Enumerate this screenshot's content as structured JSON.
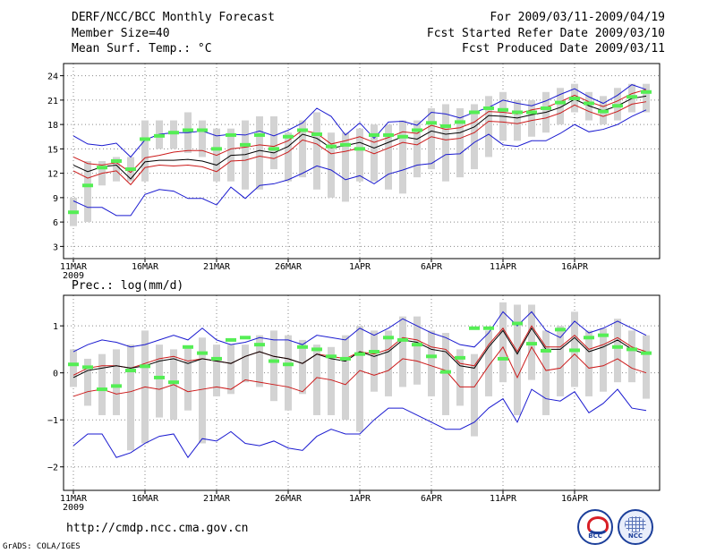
{
  "header": {
    "title": "DERF/NCC/BCC Monthly Forecast",
    "member_size": "Member Size=40",
    "variable": "Mean Surf. Temp.: °C",
    "period": "For 2009/03/11-2009/04/19",
    "started": "Fcst Started Refer Date 2009/03/10",
    "produced": "Fcst Produced Date 2009/03/11"
  },
  "footer": {
    "url": "http://cmdp.ncc.cma.gov.cn",
    "credit": "GrADS: COLA/IGES",
    "logo_bcc": "BCC",
    "logo_ncc": "NCC"
  },
  "colors": {
    "frame": "#000000",
    "grid": "#888888",
    "box": "#d3d3d3",
    "obs": "#55ee55",
    "ensmax": "#1a1ad0",
    "quant": "#cc1a1a",
    "mean": "#000000"
  },
  "chart_data": [
    {
      "type": "line",
      "title": "Mean Surf. Temp.: °C",
      "x_tick_labels": [
        "11MAR",
        "16MAR",
        "21MAR",
        "26MAR",
        "1APR",
        "6APR",
        "11APR",
        "16APR"
      ],
      "x_tick_days": [
        1,
        6,
        11,
        16,
        21,
        26,
        31,
        36
      ],
      "year_label": "2009",
      "ylim": [
        1.5,
        25.5
      ],
      "y_ticks": [
        3,
        6,
        9,
        12,
        15,
        18,
        21,
        24
      ],
      "days": 40,
      "series": [
        {
          "name": "ensemble max",
          "color": "blue",
          "values": [
            16.6,
            15.6,
            15.4,
            15.7,
            14.0,
            16.1,
            16.8,
            17.0,
            17.0,
            17.2,
            16.6,
            16.8,
            16.7,
            17.2,
            16.6,
            17.3,
            18.2,
            20.0,
            19.0,
            16.7,
            18.2,
            16.3,
            18.3,
            18.4,
            17.9,
            19.5,
            19.3,
            18.8,
            19.5,
            20.1,
            21.0,
            20.6,
            20.3,
            20.9,
            21.7,
            22.4,
            21.4,
            20.6,
            21.6,
            22.9,
            22.3
          ]
        },
        {
          "name": "upper quantile",
          "color": "red",
          "values": [
            14.0,
            13.2,
            13.0,
            13.3,
            12.1,
            13.9,
            14.2,
            14.6,
            14.8,
            14.8,
            14.2,
            15.0,
            15.2,
            15.5,
            15.3,
            16.0,
            17.3,
            16.9,
            15.6,
            16.0,
            16.5,
            15.8,
            16.4,
            17.1,
            16.9,
            17.9,
            17.4,
            17.6,
            18.3,
            19.6,
            19.5,
            19.3,
            19.8,
            20.1,
            20.8,
            21.6,
            20.8,
            20.2,
            20.9,
            21.8,
            22.3
          ]
        },
        {
          "name": "ensemble mean",
          "color": "black",
          "values": [
            13.0,
            12.2,
            12.8,
            13.0,
            11.3,
            13.4,
            13.6,
            13.6,
            13.7,
            13.5,
            13.0,
            14.2,
            14.3,
            14.8,
            14.5,
            15.3,
            16.8,
            16.3,
            15.1,
            15.4,
            15.8,
            15.1,
            15.8,
            16.5,
            16.2,
            17.2,
            16.8,
            17.0,
            17.7,
            19.1,
            19.0,
            18.8,
            19.2,
            19.5,
            20.1,
            21.1,
            20.3,
            19.7,
            20.3,
            21.2,
            21.5
          ]
        },
        {
          "name": "lower quantile",
          "color": "red",
          "values": [
            12.3,
            11.4,
            12.0,
            12.3,
            10.6,
            12.7,
            13.0,
            12.9,
            13.0,
            12.8,
            12.2,
            13.5,
            13.6,
            14.1,
            13.8,
            14.6,
            16.1,
            15.6,
            14.4,
            14.7,
            15.1,
            14.4,
            15.1,
            15.8,
            15.5,
            16.5,
            16.1,
            16.3,
            17.0,
            18.4,
            18.3,
            18.1,
            18.5,
            18.8,
            19.4,
            20.4,
            19.6,
            19.0,
            19.6,
            20.5,
            20.8
          ]
        },
        {
          "name": "ensemble min",
          "color": "blue",
          "values": [
            8.6,
            7.8,
            7.8,
            6.8,
            6.8,
            9.4,
            10.0,
            9.8,
            8.9,
            8.9,
            8.1,
            10.3,
            8.9,
            10.5,
            10.7,
            11.2,
            12.0,
            12.9,
            12.4,
            11.2,
            11.7,
            10.7,
            11.9,
            12.4,
            13.0,
            13.2,
            14.3,
            14.4,
            15.8,
            16.8,
            15.5,
            15.3,
            16.0,
            16.0,
            16.9,
            18.0,
            17.1,
            17.4,
            18.0,
            19.0,
            19.8
          ]
        }
      ],
      "boxes": {
        "low": [
          5.5,
          6.0,
          10.5,
          11.0,
          11.0,
          11.0,
          15.0,
          15.0,
          14.5,
          14.0,
          11.0,
          11.0,
          10.0,
          10.0,
          12.5,
          11.0,
          11.5,
          10.0,
          9.0,
          8.5,
          11.0,
          11.0,
          10.0,
          9.5,
          11.5,
          12.5,
          11.0,
          11.5,
          12.5,
          14.0,
          16.0,
          16.0,
          16.5,
          17.0,
          18.0,
          19.5,
          18.5,
          18.0,
          18.5,
          19.5,
          19.5
        ],
        "high": [
          9.0,
          13.5,
          13.5,
          14.0,
          14.0,
          18.5,
          18.5,
          18.5,
          19.5,
          18.5,
          17.5,
          17.5,
          18.5,
          19.0,
          19.0,
          17.0,
          18.5,
          19.5,
          17.0,
          17.0,
          17.5,
          18.0,
          18.0,
          18.5,
          18.5,
          20.0,
          20.5,
          20.0,
          20.5,
          21.5,
          22.0,
          21.0,
          21.0,
          22.0,
          22.5,
          23.0,
          22.0,
          21.5,
          22.5,
          23.0,
          23.0
        ]
      },
      "observed": [
        7.2,
        10.5,
        12.7,
        13.5,
        12.5,
        16.2,
        16.6,
        17.0,
        17.3,
        17.3,
        15.0,
        16.7,
        15.5,
        16.7,
        15.0,
        16.5,
        17.3,
        16.8,
        15.3,
        15.5,
        15.0,
        16.7,
        16.7,
        16.5,
        17.3,
        18.2,
        17.8,
        18.3,
        19.5,
        20.0,
        19.8,
        19.5,
        19.5,
        20.0,
        20.7,
        21.2,
        20.6,
        19.6,
        20.3,
        21.4,
        22.0
      ]
    },
    {
      "type": "line",
      "title": "Prec.: log(mm/d)",
      "x_tick_labels": [
        "11MAR",
        "16MAR",
        "21MAR",
        "26MAR",
        "1APR",
        "6APR",
        "11APR",
        "16APR"
      ],
      "x_tick_days": [
        1,
        6,
        11,
        16,
        21,
        26,
        31,
        36
      ],
      "year_label": "2009",
      "ylim": [
        -2.5,
        1.65
      ],
      "y_ticks": [
        -2,
        -1,
        0,
        1
      ],
      "y_tick_labels": [
        "−2",
        "−1",
        "0",
        "1"
      ],
      "days": 40,
      "series": [
        {
          "name": "ensemble max",
          "color": "blue",
          "values": [
            0.45,
            0.6,
            0.7,
            0.65,
            0.55,
            0.6,
            0.7,
            0.8,
            0.7,
            0.95,
            0.7,
            0.6,
            0.65,
            0.75,
            0.7,
            0.7,
            0.6,
            0.8,
            0.75,
            0.7,
            0.95,
            0.8,
            0.95,
            1.15,
            1.0,
            0.85,
            0.75,
            0.6,
            0.55,
            0.85,
            1.3,
            1.0,
            1.3,
            0.9,
            0.75,
            1.1,
            0.85,
            0.95,
            1.1,
            0.95,
            0.8
          ]
        },
        {
          "name": "upper quantile",
          "color": "red",
          "values": [
            -0.05,
            0.1,
            0.15,
            0.15,
            0.1,
            0.2,
            0.3,
            0.35,
            0.25,
            0.3,
            0.25,
            0.2,
            0.35,
            0.45,
            0.35,
            0.3,
            0.2,
            0.4,
            0.35,
            0.3,
            0.45,
            0.4,
            0.5,
            0.75,
            0.7,
            0.55,
            0.5,
            0.2,
            0.15,
            0.6,
            0.95,
            0.45,
            1.0,
            0.55,
            0.55,
            0.8,
            0.5,
            0.6,
            0.75,
            0.55,
            0.45
          ]
        },
        {
          "name": "ensemble mean",
          "color": "black",
          "values": [
            -0.1,
            0.05,
            0.1,
            0.15,
            0.1,
            0.15,
            0.25,
            0.3,
            0.2,
            0.3,
            0.25,
            0.2,
            0.35,
            0.45,
            0.35,
            0.3,
            0.2,
            0.4,
            0.3,
            0.25,
            0.45,
            0.35,
            0.45,
            0.7,
            0.65,
            0.5,
            0.45,
            0.15,
            0.1,
            0.55,
            0.9,
            0.4,
            0.95,
            0.5,
            0.5,
            0.75,
            0.45,
            0.55,
            0.7,
            0.5,
            0.4
          ]
        },
        {
          "name": "lower quantile",
          "color": "red",
          "values": [
            -0.5,
            -0.4,
            -0.35,
            -0.45,
            -0.4,
            -0.3,
            -0.35,
            -0.25,
            -0.4,
            -0.35,
            -0.3,
            -0.35,
            -0.15,
            -0.2,
            -0.25,
            -0.3,
            -0.4,
            -0.1,
            -0.15,
            -0.25,
            0.05,
            -0.05,
            0.05,
            0.3,
            0.25,
            0.15,
            0.05,
            -0.3,
            -0.3,
            0.15,
            0.55,
            -0.1,
            0.55,
            0.05,
            0.1,
            0.4,
            0.1,
            0.15,
            0.3,
            0.1,
            0.0
          ]
        },
        {
          "name": "ensemble min",
          "color": "blue",
          "values": [
            -1.55,
            -1.3,
            -1.3,
            -1.8,
            -1.7,
            -1.5,
            -1.35,
            -1.3,
            -1.8,
            -1.4,
            -1.45,
            -1.25,
            -1.5,
            -1.55,
            -1.45,
            -1.6,
            -1.65,
            -1.35,
            -1.2,
            -1.3,
            -1.3,
            -1.0,
            -0.75,
            -0.75,
            -0.9,
            -1.05,
            -1.2,
            -1.2,
            -1.05,
            -0.75,
            -0.55,
            -1.05,
            -0.35,
            -0.55,
            -0.6,
            -0.4,
            -0.85,
            -0.65,
            -0.35,
            -0.75,
            -0.8
          ]
        }
      ],
      "boxes": {
        "low": [
          -0.3,
          -0.7,
          -0.9,
          -0.9,
          -1.65,
          -1.5,
          -0.95,
          -1.0,
          -0.8,
          -1.5,
          -0.5,
          -0.45,
          -0.2,
          -0.3,
          -0.6,
          -0.8,
          -0.45,
          -0.9,
          -0.9,
          -1.0,
          -1.25,
          -0.4,
          -0.5,
          -0.3,
          -0.25,
          -0.5,
          -0.9,
          -0.7,
          -1.35,
          -0.5,
          -0.2,
          -0.9,
          -0.15,
          -0.9,
          -0.5,
          -0.3,
          -0.5,
          -0.4,
          -0.2,
          -0.2,
          -0.55
        ],
        "high": [
          0.5,
          0.3,
          0.4,
          0.5,
          0.6,
          0.9,
          0.6,
          0.5,
          0.55,
          0.75,
          0.6,
          0.6,
          0.6,
          0.8,
          0.9,
          0.8,
          0.7,
          0.6,
          0.55,
          0.8,
          1.0,
          0.9,
          0.9,
          1.2,
          1.2,
          0.9,
          0.85,
          0.5,
          0.4,
          0.9,
          1.5,
          1.45,
          1.45,
          0.9,
          1.0,
          1.3,
          0.9,
          0.95,
          1.15,
          0.9,
          0.8
        ]
      },
      "observed": [
        0.18,
        0.12,
        -0.35,
        -0.28,
        0.05,
        0.14,
        -0.1,
        -0.2,
        0.55,
        0.42,
        0.3,
        0.7,
        0.75,
        0.6,
        0.25,
        0.18,
        0.55,
        0.5,
        0.35,
        0.3,
        0.4,
        0.45,
        0.75,
        0.7,
        0.6,
        0.35,
        0.02,
        0.32,
        0.95,
        0.95,
        0.3,
        1.05,
        0.62,
        0.47,
        0.92,
        0.48,
        0.75,
        0.8,
        0.55,
        0.5,
        0.42
      ]
    }
  ]
}
